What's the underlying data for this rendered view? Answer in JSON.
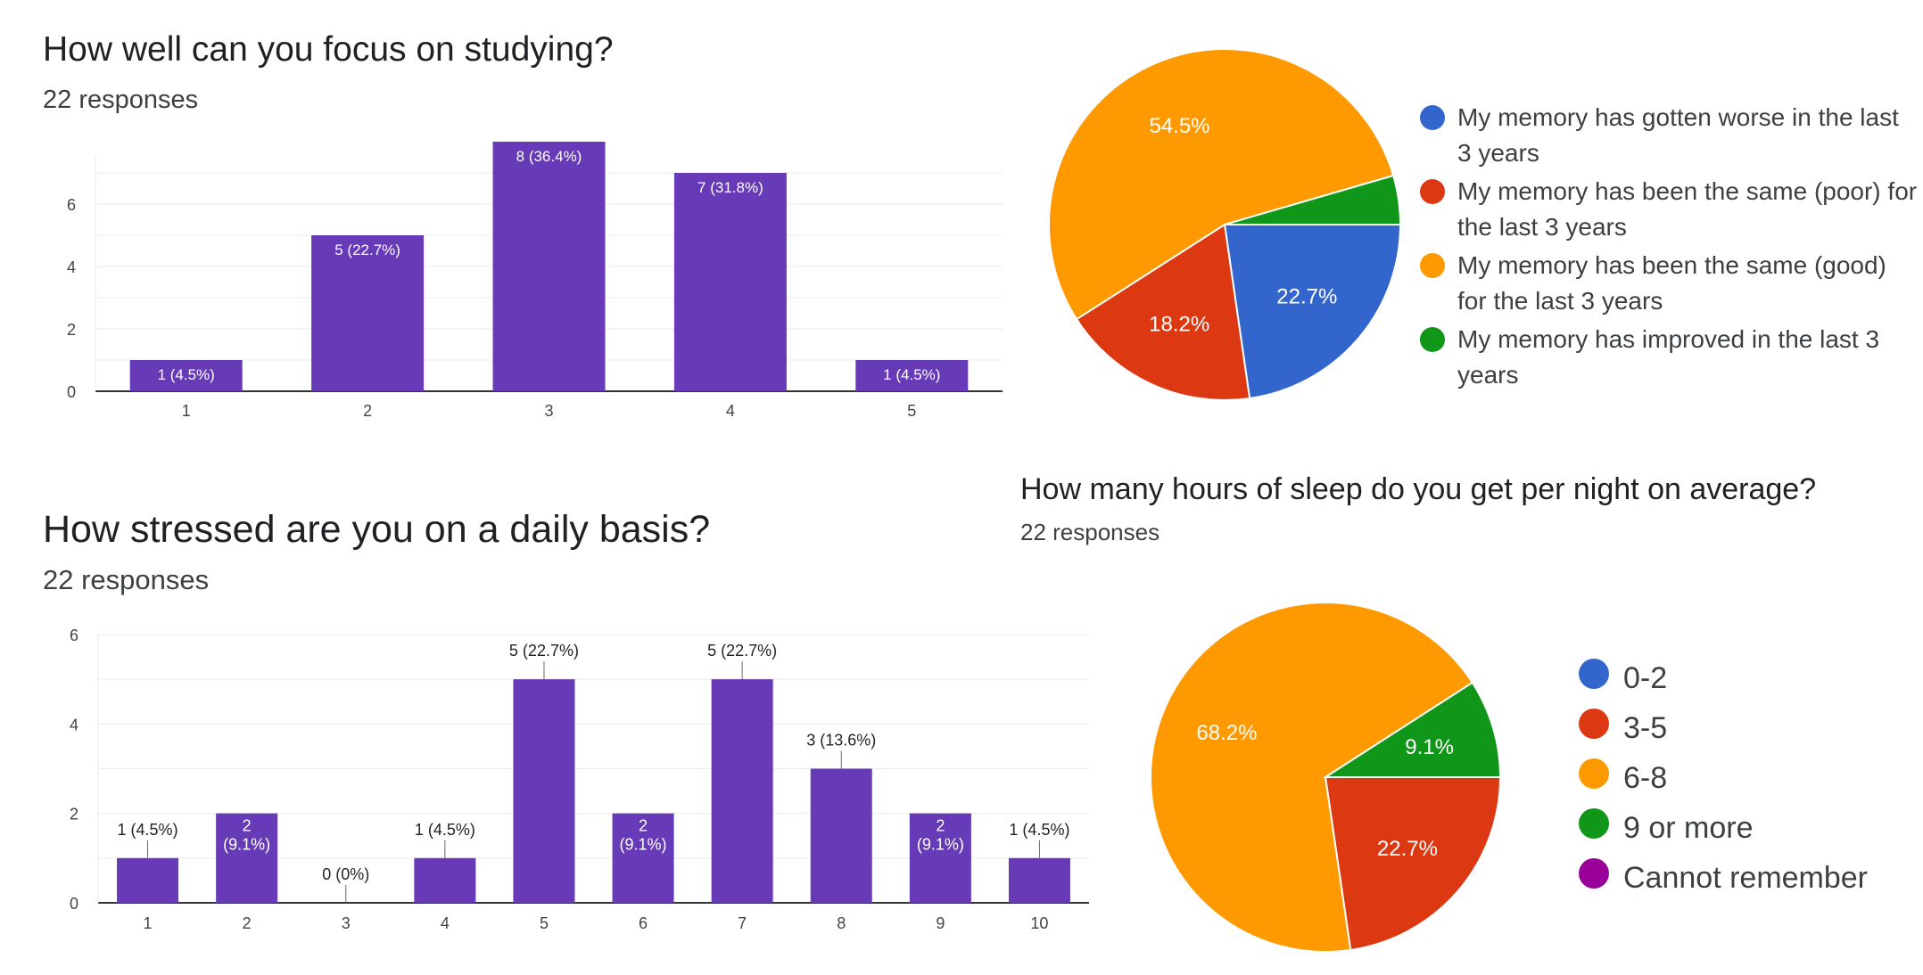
{
  "chart_data": [
    {
      "type": "bar",
      "title": "How well can you focus on studying?",
      "subtitle": "22 responses",
      "categories": [
        "1",
        "2",
        "3",
        "4",
        "5"
      ],
      "values": [
        1,
        5,
        8,
        7,
        1
      ],
      "data_labels": [
        "1 (4.5%)",
        "5 (22.7%)",
        "8 (36.4%)",
        "7 (31.8%)",
        "1 (4.5%)"
      ],
      "yticks": [
        "0",
        "2",
        "4",
        "6"
      ],
      "ylim": [
        0,
        7.6
      ],
      "bar_color": "#673ab7",
      "label_position": "inside-top",
      "grid": true
    },
    {
      "type": "pie",
      "categories": [
        "My memory has gotten worse in the last 3 years",
        "My memory has been the same (poor) for the last 3 years",
        "My memory has been the same (good) for the last 3 years",
        "My memory has improved in the last 3 years"
      ],
      "values": [
        22.7,
        18.2,
        54.5,
        4.5
      ],
      "slice_labels": [
        "22.7%",
        "18.2%",
        "54.5%",
        ""
      ],
      "colors": [
        "#3366cc",
        "#dc3912",
        "#ff9900",
        "#109618"
      ],
      "legend_placement": "right"
    },
    {
      "type": "bar",
      "title": "How stressed are you on a daily basis?",
      "subtitle": "22 responses",
      "categories": [
        "1",
        "2",
        "3",
        "4",
        "5",
        "6",
        "7",
        "8",
        "9",
        "10"
      ],
      "values": [
        1,
        2,
        0,
        1,
        5,
        2,
        5,
        3,
        2,
        1
      ],
      "data_labels": [
        "1 (4.5%)",
        "2 (9.1%)",
        "0 (0%)",
        "1 (4.5%)",
        "5 (22.7%)",
        "2 (9.1%)",
        "5 (22.7%)",
        "3 (13.6%)",
        "2 (9.1%)",
        "1 (4.5%)"
      ],
      "label_inside": [
        false,
        true,
        false,
        false,
        false,
        true,
        false,
        false,
        true,
        false
      ],
      "yticks": [
        "0",
        "2",
        "4",
        "6"
      ],
      "ylim": [
        0,
        6
      ],
      "bar_color": "#673ab7",
      "grid": true
    },
    {
      "type": "pie",
      "title": "How many hours of sleep do you get per night on average?",
      "subtitle": "22 responses",
      "categories": [
        "0-2",
        "3-5",
        "6-8",
        "9 or more",
        "Cannot remember"
      ],
      "values": [
        0,
        22.7,
        68.2,
        9.1,
        0
      ],
      "slice_labels": [
        "",
        "22.7%",
        "68.2%",
        "9.1%",
        ""
      ],
      "colors": [
        "#3366cc",
        "#dc3912",
        "#ff9900",
        "#109618",
        "#990099"
      ],
      "legend_placement": "right"
    }
  ]
}
